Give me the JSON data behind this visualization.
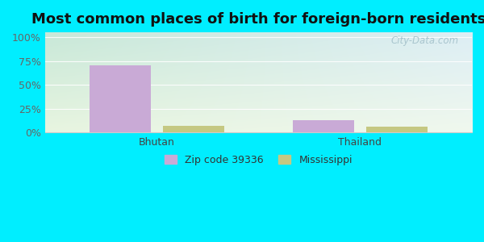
{
  "title": "Most common places of birth for foreign-born residents",
  "categories": [
    "Bhutan",
    "Thailand"
  ],
  "zipcode_values": [
    70.0,
    13.0
  ],
  "mississippi_values": [
    7.0,
    6.0
  ],
  "zipcode_color": "#c9aad6",
  "mississippi_color": "#c5c882",
  "outer_bg": "#00eeff",
  "chart_bg_topleft": "#c8e8d8",
  "chart_bg_topright": "#ddeef5",
  "chart_bg_bottom": "#eef7e8",
  "yticks": [
    0,
    25,
    50,
    75,
    100
  ],
  "ytick_labels": [
    "0%",
    "25%",
    "50%",
    "75%",
    "100%"
  ],
  "legend_labels": [
    "Zip code 39336",
    "Mississippi"
  ],
  "bar_width": 0.3,
  "watermark": "City-Data.com",
  "title_fontsize": 13,
  "tick_fontsize": 9,
  "legend_fontsize": 9
}
